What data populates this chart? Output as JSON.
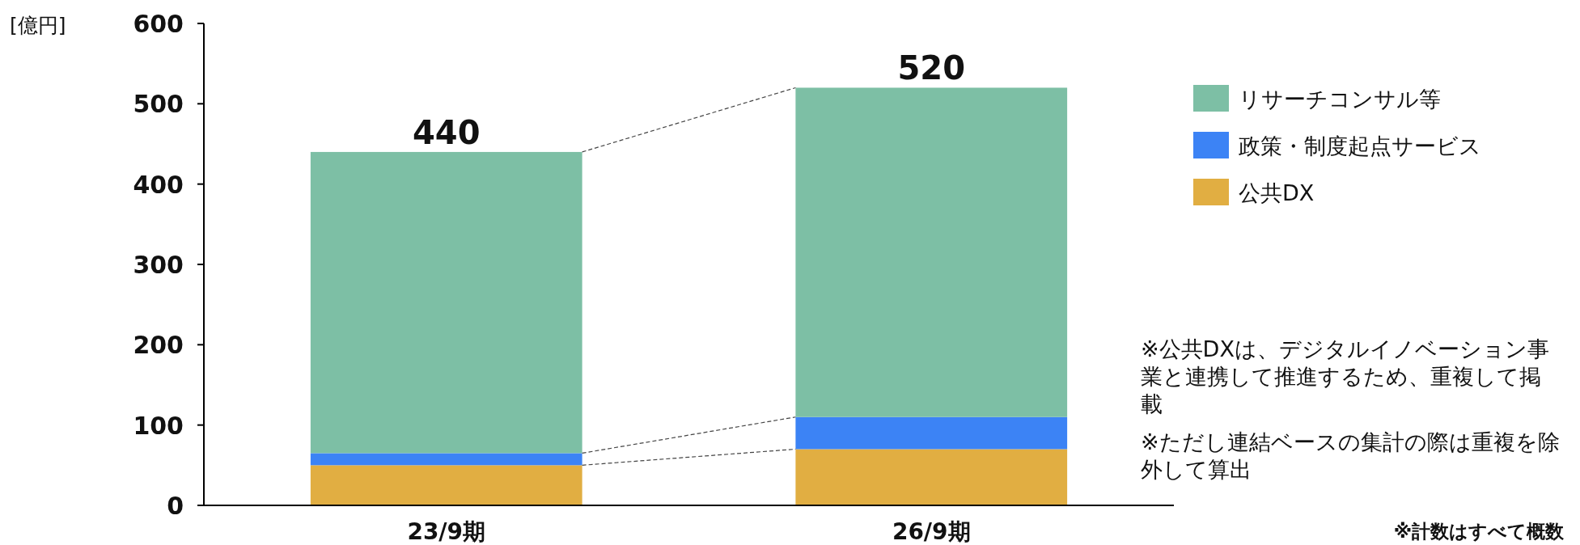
{
  "chart_data": {
    "type": "bar",
    "stacked": true,
    "ylabel": "[億円]",
    "categories": [
      "23/9期",
      "26/9期"
    ],
    "series": [
      {
        "name": "公共DX",
        "color": "#e1ae42",
        "values": [
          50,
          70
        ]
      },
      {
        "name": "政策・制度起点サービス",
        "color": "#3c83f5",
        "values": [
          15,
          40
        ]
      },
      {
        "name": "リサーチコンサル等",
        "color": "#7dbfa5",
        "values": [
          375,
          410
        ]
      }
    ],
    "totals": [
      "440",
      "520"
    ],
    "ylim": [
      0,
      600
    ],
    "yticks": [
      0,
      100,
      200,
      300,
      400,
      500,
      600
    ],
    "grid": false,
    "legend": "right",
    "annotations": [
      "※公共DXは、デジタルイノベーション事業と連携して推進するため、重複して掲載",
      "※ただし連結ベースの集計の際は重複を除外して算出",
      "※計数はすべて概数"
    ]
  }
}
